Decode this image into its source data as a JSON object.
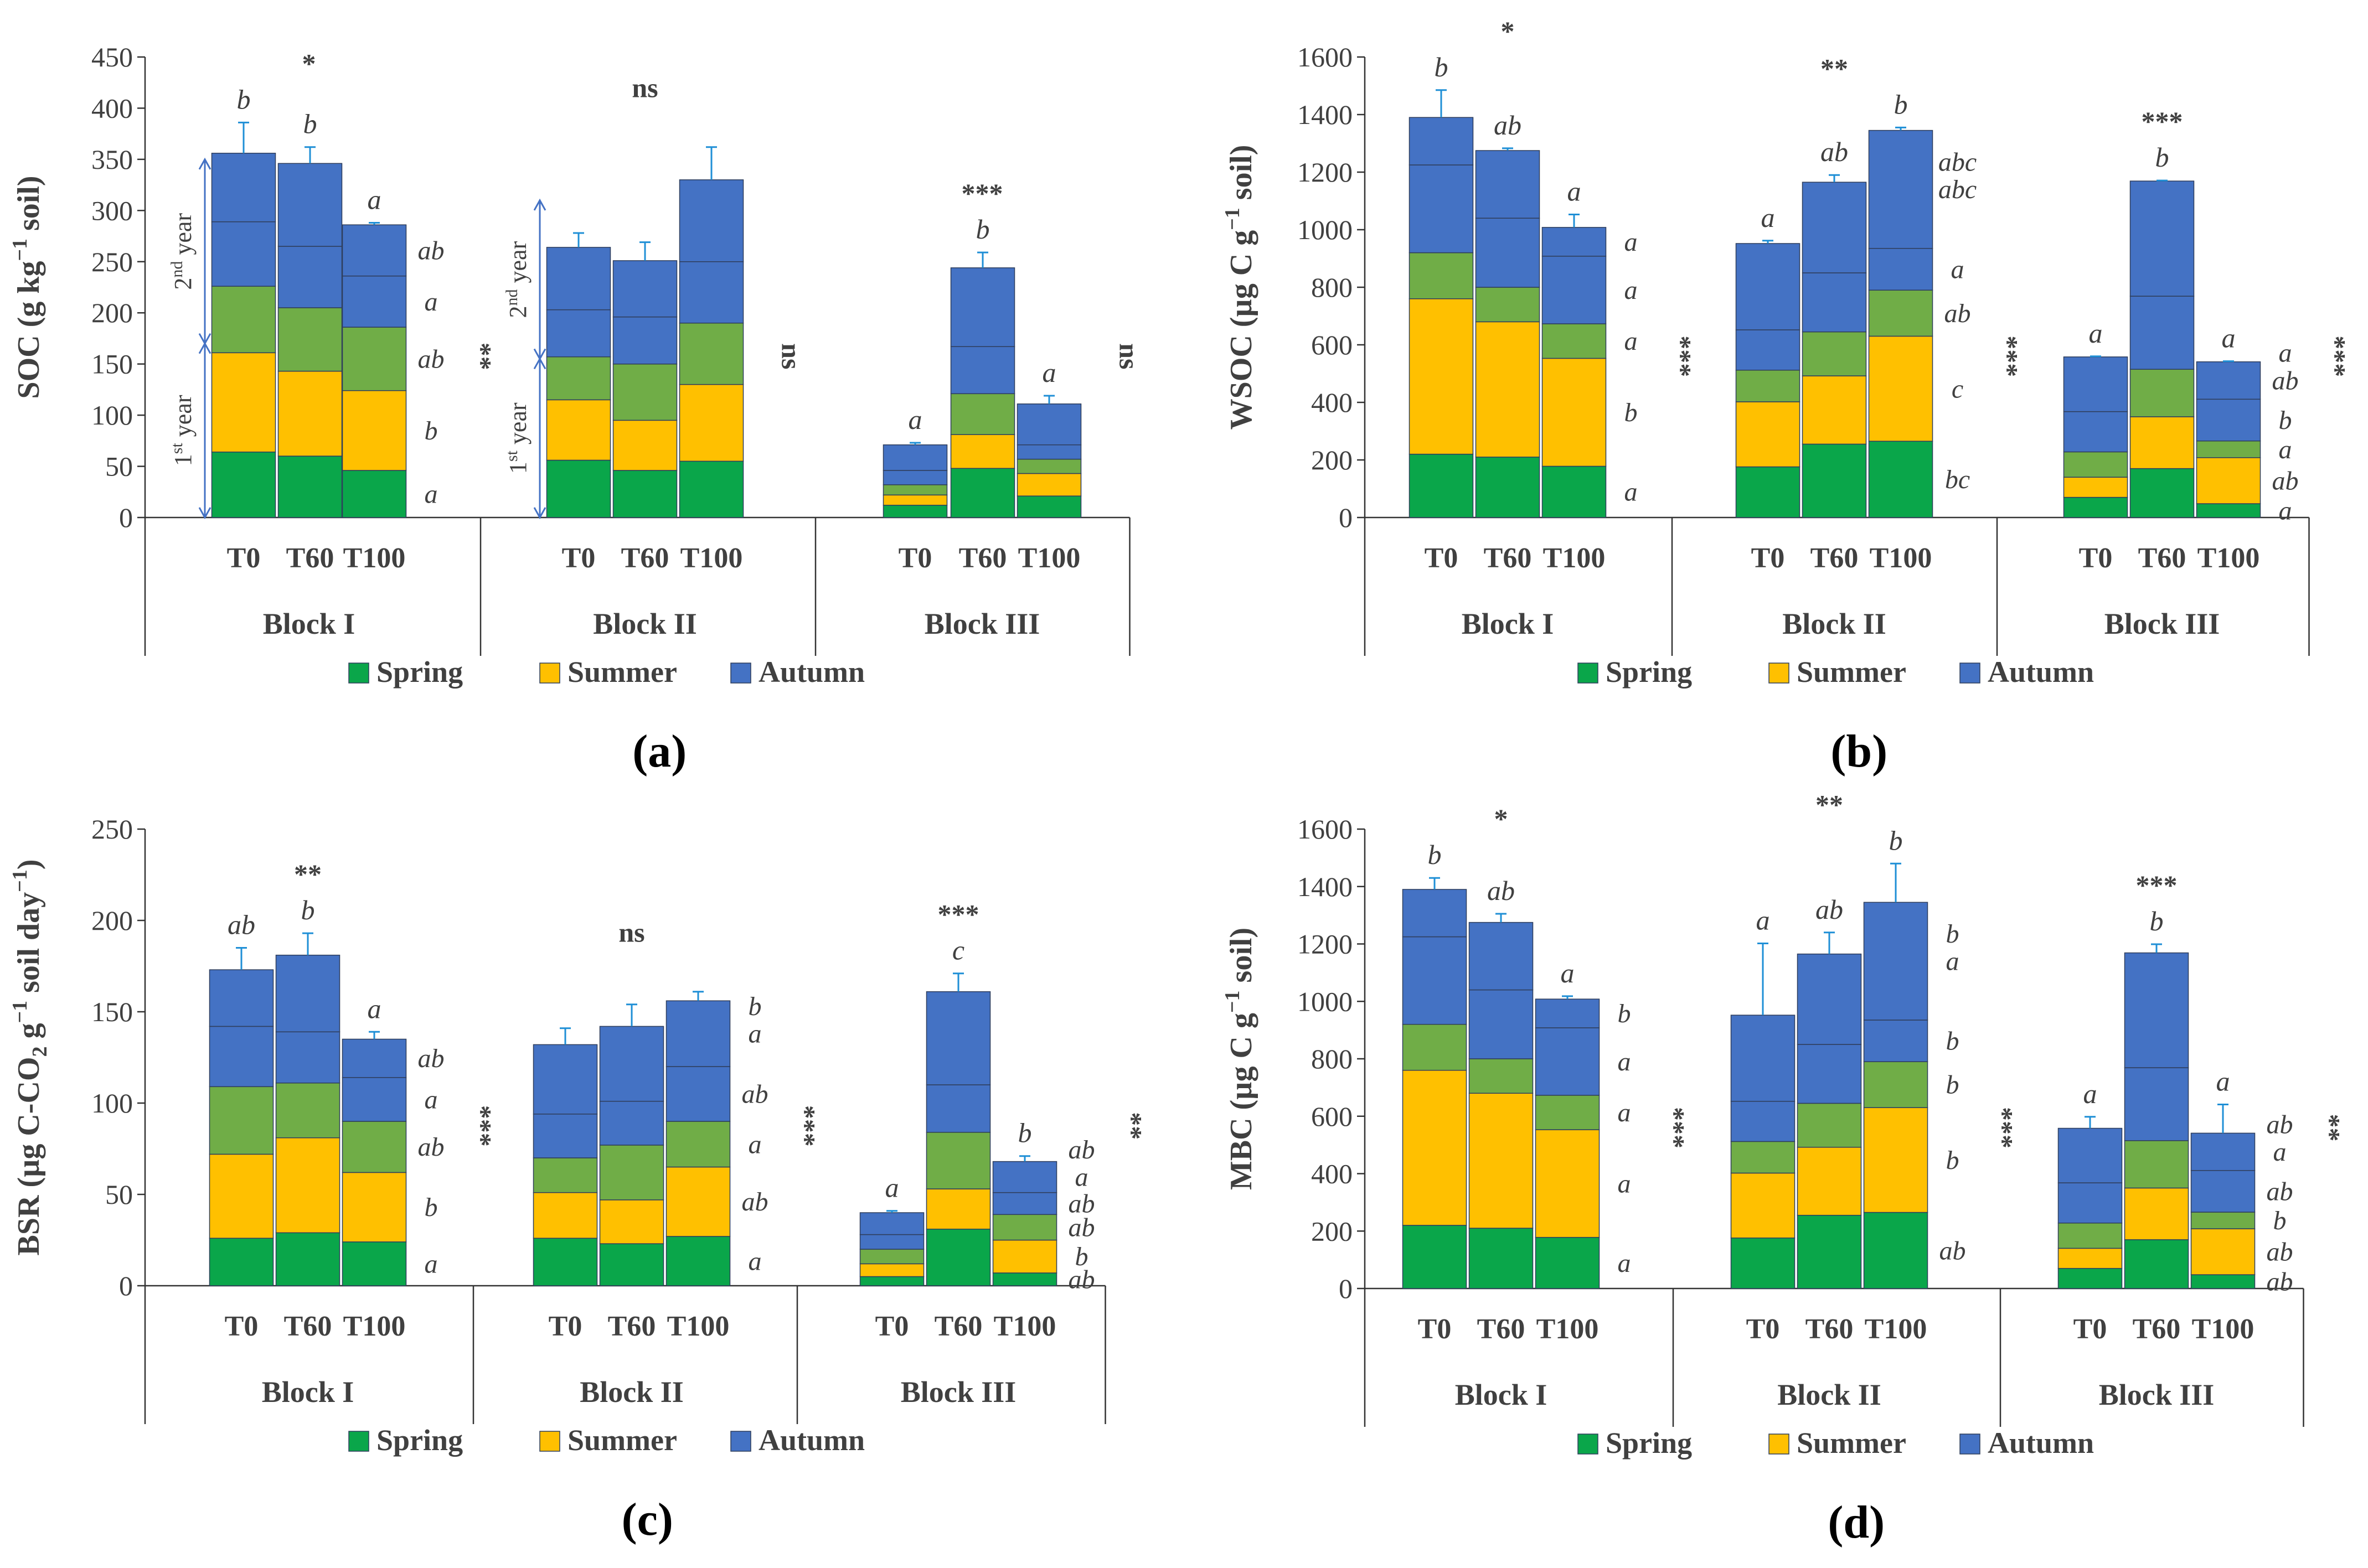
{
  "colors": {
    "spring": "#0aa64a",
    "summer": "#ffc000",
    "autumn": "#4472c4",
    "y2": "#70ad47",
    "err": "#1f8fd6",
    "arrow": "#4472c4"
  },
  "chart_data": [
    {
      "type": "bar",
      "panel": "(a)",
      "ylabel_main": "SOC (g kg",
      "ylabel_sup": "−1",
      "ylabel_end": " soil)",
      "ylim": [
        0,
        450
      ],
      "yticks": [
        0,
        50,
        100,
        150,
        200,
        250,
        300,
        350,
        400,
        450
      ],
      "groups": [
        "Block I",
        "Block II",
        "Block III"
      ],
      "categories": [
        "T0",
        "T60",
        "T100"
      ],
      "series_names": [
        "Spring",
        "Summer",
        "Autumn"
      ],
      "bars": [
        [
          [
            64,
            97,
            65,
            63,
            67
          ],
          [
            60,
            83,
            62,
            60,
            81
          ],
          [
            46,
            78,
            62,
            50,
            50
          ]
        ],
        [
          [
            56,
            59,
            42,
            46,
            61
          ],
          [
            46,
            49,
            55,
            46,
            55
          ],
          [
            55,
            75,
            60,
            60,
            80
          ]
        ],
        [
          [
            12,
            10,
            10,
            14,
            25
          ],
          [
            48,
            33,
            40,
            46,
            77
          ],
          [
            21,
            22,
            14,
            14,
            40
          ]
        ]
      ],
      "err_top": [
        [
          30,
          16,
          2
        ],
        [
          14,
          18,
          32
        ],
        [
          2,
          15,
          8
        ]
      ],
      "group_sig": [
        "*",
        "ns",
        "***"
      ],
      "right_sig": [
        "**",
        "ns",
        "ns"
      ],
      "top_letters": [
        [
          "b",
          "b",
          "a"
        ],
        [
          "",
          "",
          ""
        ],
        [
          "a",
          "b",
          "a"
        ]
      ],
      "side_letters": [
        [
          "a",
          "b",
          "ab",
          "a",
          "ab"
        ],
        [],
        []
      ],
      "year_labels": [
        "1",
        "st",
        "year",
        "2",
        "nd",
        "year"
      ]
    },
    {
      "type": "bar",
      "panel": "(b)",
      "ylabel_main": "WSOC (µg C g",
      "ylabel_sup": "−1",
      "ylabel_end": " soil)",
      "ylim": [
        0,
        1600
      ],
      "yticks": [
        0,
        200,
        400,
        600,
        800,
        1000,
        1200,
        1400,
        1600
      ],
      "groups": [
        "Block I",
        "Block II",
        "Block III"
      ],
      "categories": [
        "T0",
        "T60",
        "T100"
      ],
      "series_names": [
        "Spring",
        "Summer",
        "Autumn"
      ],
      "bars": [
        [
          [
            220,
            540,
            160,
            305,
            165
          ],
          [
            210,
            470,
            120,
            240,
            235
          ],
          [
            178,
            375,
            120,
            235,
            100
          ]
        ],
        [
          [
            176,
            226,
            110,
            140,
            300
          ],
          [
            255,
            237,
            153,
            205,
            315
          ],
          [
            265,
            365,
            160,
            145,
            410
          ]
        ],
        [
          [
            70,
            70,
            88,
            140,
            190
          ],
          [
            170,
            180,
            165,
            254,
            400
          ],
          [
            48,
            160,
            58,
            145,
            130
          ]
        ]
      ],
      "err_top": [
        [
          95,
          8,
          45
        ],
        [
          10,
          25,
          10
        ],
        [
          2,
          2,
          2
        ]
      ],
      "group_sig": [
        "*",
        "**",
        "***"
      ],
      "right_sig": [
        "***",
        "***",
        "***"
      ],
      "top_letters": [
        [
          "b",
          "ab",
          "a"
        ],
        [
          "a",
          "ab",
          "b"
        ],
        [
          "a",
          "b",
          "a"
        ]
      ],
      "side_letters": [
        [
          "a",
          "b",
          "a",
          "a",
          "a"
        ],
        [
          "bc",
          "c",
          "ab",
          "a",
          "abc",
          "abc"
        ],
        [
          "a",
          "ab",
          "a",
          "b",
          "ab",
          "a"
        ]
      ]
    },
    {
      "type": "bar",
      "panel": "(c)",
      "ylabel_main": "BSR (µg C-CO",
      "ylabel_sub": "2",
      "ylabel_mid": " g",
      "ylabel_sup": "−1",
      "ylabel_end": " soil day",
      "ylabel_sup2": "−1",
      "ylabel_close": ")",
      "ylim": [
        0,
        250
      ],
      "yticks": [
        0,
        50,
        100,
        150,
        200,
        250
      ],
      "groups": [
        "Block I",
        "Block II",
        "Block III"
      ],
      "categories": [
        "T0",
        "T60",
        "T100"
      ],
      "series_names": [
        "Spring",
        "Summer",
        "Autumn"
      ],
      "bars": [
        [
          [
            26,
            46,
            37,
            33,
            31
          ],
          [
            29,
            52,
            30,
            28,
            42
          ],
          [
            24,
            38,
            28,
            24,
            21
          ]
        ],
        [
          [
            26,
            25,
            19,
            24,
            38
          ],
          [
            23,
            24,
            30,
            24,
            41
          ],
          [
            27,
            38,
            25,
            30,
            36
          ]
        ],
        [
          [
            5,
            7,
            8,
            8,
            12
          ],
          [
            31,
            22,
            31,
            26,
            51
          ],
          [
            7,
            18,
            14,
            12,
            17
          ]
        ]
      ],
      "err_top": [
        [
          12,
          12,
          4
        ],
        [
          9,
          12,
          5
        ],
        [
          1,
          10,
          3
        ]
      ],
      "group_sig": [
        "**",
        "ns",
        "***"
      ],
      "right_sig": [
        "***",
        "***",
        "**"
      ],
      "top_letters": [
        [
          "ab",
          "b",
          "a"
        ],
        [
          "",
          "",
          ""
        ],
        [
          "a",
          "c",
          "b"
        ]
      ],
      "side_letters": [
        [
          "a",
          "b",
          "ab",
          "a",
          "ab"
        ],
        [
          "a",
          "ab",
          "a",
          "ab",
          "a",
          "b"
        ],
        [
          "ab",
          "b",
          "ab",
          "ab",
          "a",
          "ab"
        ]
      ]
    },
    {
      "type": "bar",
      "panel": "(d)",
      "ylabel_main": "MBC (µg C g",
      "ylabel_sup": "−1",
      "ylabel_end": " soil)",
      "ylim": [
        0,
        1600
      ],
      "yticks": [
        0,
        200,
        400,
        600,
        800,
        1000,
        1200,
        1400,
        1600
      ],
      "groups": [
        "Block I",
        "Block II",
        "Block III"
      ],
      "categories": [
        "T0",
        "T60",
        "T100"
      ],
      "series_names": [
        "Spring",
        "Summer",
        "Autumn"
      ],
      "bars": [
        [
          [
            220,
            540,
            160,
            305,
            165
          ],
          [
            210,
            470,
            120,
            240,
            235
          ],
          [
            178,
            375,
            120,
            235,
            100
          ]
        ],
        [
          [
            176,
            226,
            110,
            140,
            300
          ],
          [
            255,
            237,
            153,
            205,
            315
          ],
          [
            265,
            365,
            160,
            145,
            410
          ]
        ],
        [
          [
            70,
            70,
            88,
            140,
            190
          ],
          [
            170,
            180,
            165,
            254,
            400
          ],
          [
            48,
            160,
            58,
            145,
            130
          ]
        ]
      ],
      "err_top": [
        [
          40,
          30,
          10
        ],
        [
          250,
          75,
          135
        ],
        [
          40,
          30,
          100
        ]
      ],
      "group_sig": [
        "*",
        "**",
        "***"
      ],
      "right_sig": [
        "***",
        "***",
        "**"
      ],
      "top_letters": [
        [
          "b",
          "ab",
          "a"
        ],
        [
          "a",
          "ab",
          "b"
        ],
        [
          "a",
          "b",
          "a"
        ]
      ],
      "side_letters": [
        [
          "a",
          "a",
          "a",
          "a",
          "b"
        ],
        [
          "ab",
          "b",
          "b",
          "b",
          "a",
          "b"
        ],
        [
          "ab",
          "ab",
          "b",
          "ab",
          "a",
          "ab"
        ]
      ]
    }
  ],
  "legend": [
    "Spring",
    "Summer",
    "Autumn"
  ],
  "panel_labels": [
    "(a)",
    "(b)",
    "(c)",
    "(d)"
  ]
}
